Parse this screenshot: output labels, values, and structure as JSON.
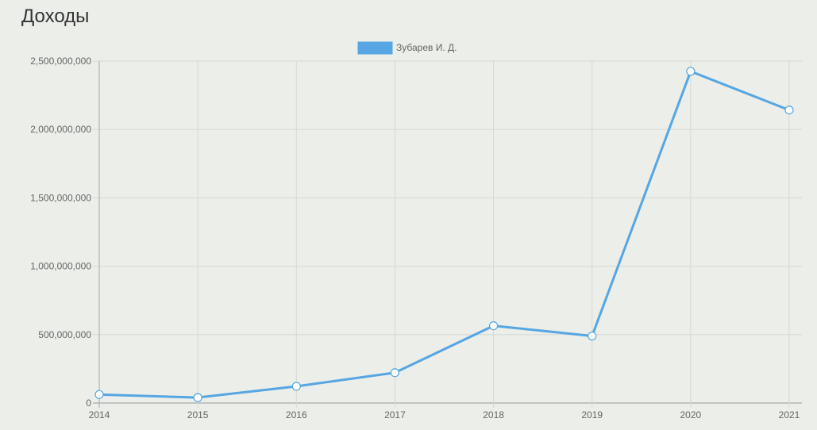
{
  "title": "Доходы",
  "chart_data": {
    "type": "line",
    "title": "Доходы",
    "x": [
      "2014",
      "2015",
      "2016",
      "2017",
      "2018",
      "2019",
      "2020",
      "2021"
    ],
    "series": [
      {
        "name": "Зубарев И. Д.",
        "color": "#55a6e2",
        "values": [
          62000000,
          40000000,
          122000000,
          222000000,
          565000000,
          490000000,
          2425000000,
          2142000000
        ]
      }
    ],
    "y_ticks": [
      0,
      500000000,
      1000000000,
      1500000000,
      2000000000,
      2500000000
    ],
    "y_tick_labels": [
      "0",
      "500,000,000",
      "1,000,000,000",
      "1,500,000,000",
      "2,000,000,000",
      "2,500,000,000"
    ],
    "ylim": [
      0,
      2500000000
    ],
    "grid": true,
    "legend_position": "top-center"
  }
}
